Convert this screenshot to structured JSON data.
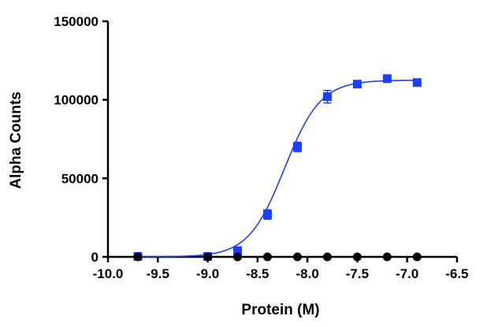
{
  "chart_data": {
    "type": "scatter",
    "title": "",
    "xlabel": "Protein (M)",
    "ylabel": "Alpha Counts",
    "xlim": [
      -10.0,
      -6.5
    ],
    "ylim": [
      0,
      150000
    ],
    "x_ticks": [
      -10.0,
      -9.5,
      -9.0,
      -8.5,
      -8.0,
      -7.5,
      -7.0,
      -6.5
    ],
    "x_tick_labels": [
      "-10.0",
      "-9.5",
      "-9.0",
      "-8.5",
      "-8.0",
      "-7.5",
      "-7.0",
      "-6.5"
    ],
    "y_ticks": [
      0,
      50000,
      100000,
      150000
    ],
    "y_tick_labels": [
      "0",
      "50000",
      "100000",
      "150000"
    ],
    "grid": false,
    "legend": "none",
    "series": [
      {
        "marker": "square",
        "color": "#1f3ff5",
        "x": [
          -9.7,
          -9.0,
          -8.7,
          -8.4,
          -8.1,
          -7.8,
          -7.5,
          -7.2,
          -6.9
        ],
        "y": [
          300,
          300,
          4000,
          27000,
          70000,
          102000,
          110000,
          113500,
          111000
        ],
        "error": [
          0,
          0,
          800,
          3000,
          3000,
          4000,
          1500,
          1500,
          1000
        ],
        "fit": {
          "type": "sigmoidal-dose-response",
          "bottom": 0,
          "top": 112500,
          "log_ec50": -8.23,
          "hill_slope": 2.4,
          "x_range": [
            -9.7,
            -6.9
          ]
        }
      },
      {
        "marker": "circle",
        "color": "#000000",
        "x": [
          -9.7,
          -9.0,
          -8.7,
          -8.4,
          -8.1,
          -7.8,
          -7.5,
          -7.2,
          -6.9
        ],
        "y": [
          0,
          0,
          0,
          0,
          0,
          0,
          0,
          0,
          0
        ]
      }
    ]
  }
}
